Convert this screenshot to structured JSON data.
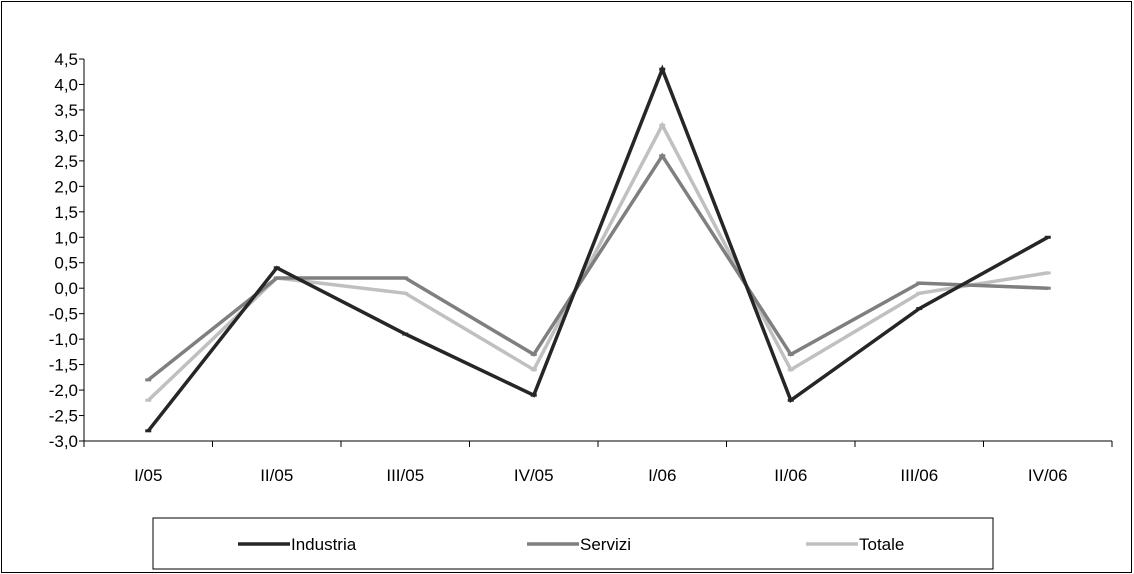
{
  "chart_data": {
    "type": "line",
    "title": "",
    "xlabel": "",
    "ylabel": "",
    "categories": [
      "I/05",
      "II/05",
      "III/05",
      "IV/05",
      "I/06",
      "II/06",
      "III/06",
      "IV/06"
    ],
    "ylim": [
      -3.0,
      4.5
    ],
    "yticks": [
      "-3,0",
      "-2,5",
      "-2,0",
      "-1,5",
      "-1,0",
      "-0,5",
      "0,0",
      "0,5",
      "1,0",
      "1,5",
      "2,0",
      "2,5",
      "3,0",
      "3,5",
      "4,0",
      "4,5"
    ],
    "ytick_values": [
      -3.0,
      -2.5,
      -2.0,
      -1.5,
      -1.0,
      -0.5,
      0.0,
      0.5,
      1.0,
      1.5,
      2.0,
      2.5,
      3.0,
      3.5,
      4.0,
      4.5
    ],
    "grid": false,
    "legend_position": "bottom",
    "series": [
      {
        "name": "Industria",
        "color": "#262626",
        "values": [
          -2.8,
          0.4,
          -0.9,
          -2.1,
          4.3,
          -2.2,
          -0.4,
          1.0
        ]
      },
      {
        "name": "Servizi",
        "color": "#7f7f7f",
        "values": [
          -1.8,
          0.2,
          0.2,
          -1.3,
          2.6,
          -1.3,
          0.1,
          0.0
        ]
      },
      {
        "name": "Totale",
        "color": "#c0c0c0",
        "values": [
          -2.2,
          0.2,
          -0.1,
          -1.6,
          3.2,
          -1.6,
          -0.1,
          0.3
        ]
      }
    ]
  }
}
